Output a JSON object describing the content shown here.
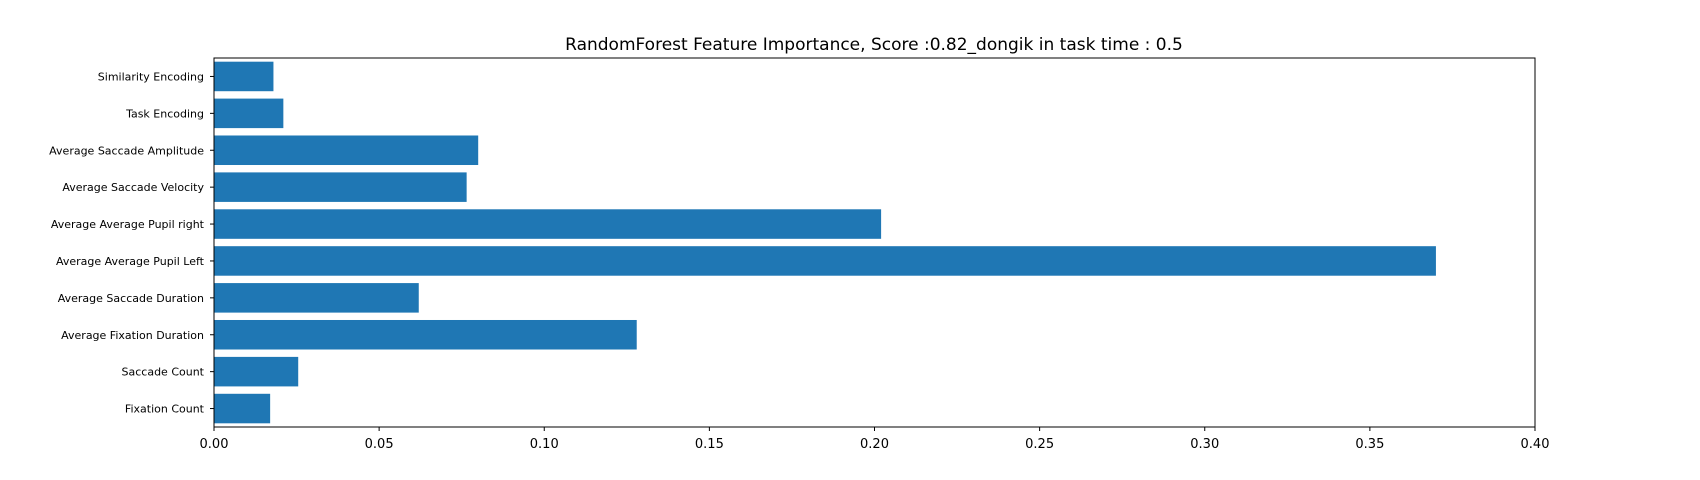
{
  "chart_data": {
    "type": "bar",
    "orientation": "horizontal",
    "title": "RandomForest Feature Importance, Score :0.82_dongik in task time : 0.5",
    "xlabel": "",
    "ylabel": "",
    "xlim": [
      0,
      0.4
    ],
    "xticks": [
      0.0,
      0.05,
      0.1,
      0.15,
      0.2,
      0.25,
      0.3,
      0.35,
      0.4
    ],
    "xtick_labels": [
      "0.00",
      "0.05",
      "0.10",
      "0.15",
      "0.20",
      "0.25",
      "0.30",
      "0.35",
      "0.40"
    ],
    "categories": [
      "Fixation Count",
      "Saccade Count",
      "Average Fixation Duration",
      "Average Saccade Duration",
      "Average Average Pupil Left",
      "Average Average Pupil right",
      "Average Saccade Velocity",
      "Average Saccade Amplitude",
      "Task Encoding",
      "Similarity Encoding"
    ],
    "values": [
      0.017,
      0.0255,
      0.128,
      0.062,
      0.37,
      0.202,
      0.0765,
      0.08,
      0.021,
      0.018
    ],
    "bar_color": "#1f77b4",
    "grid": false,
    "legend": "none"
  }
}
